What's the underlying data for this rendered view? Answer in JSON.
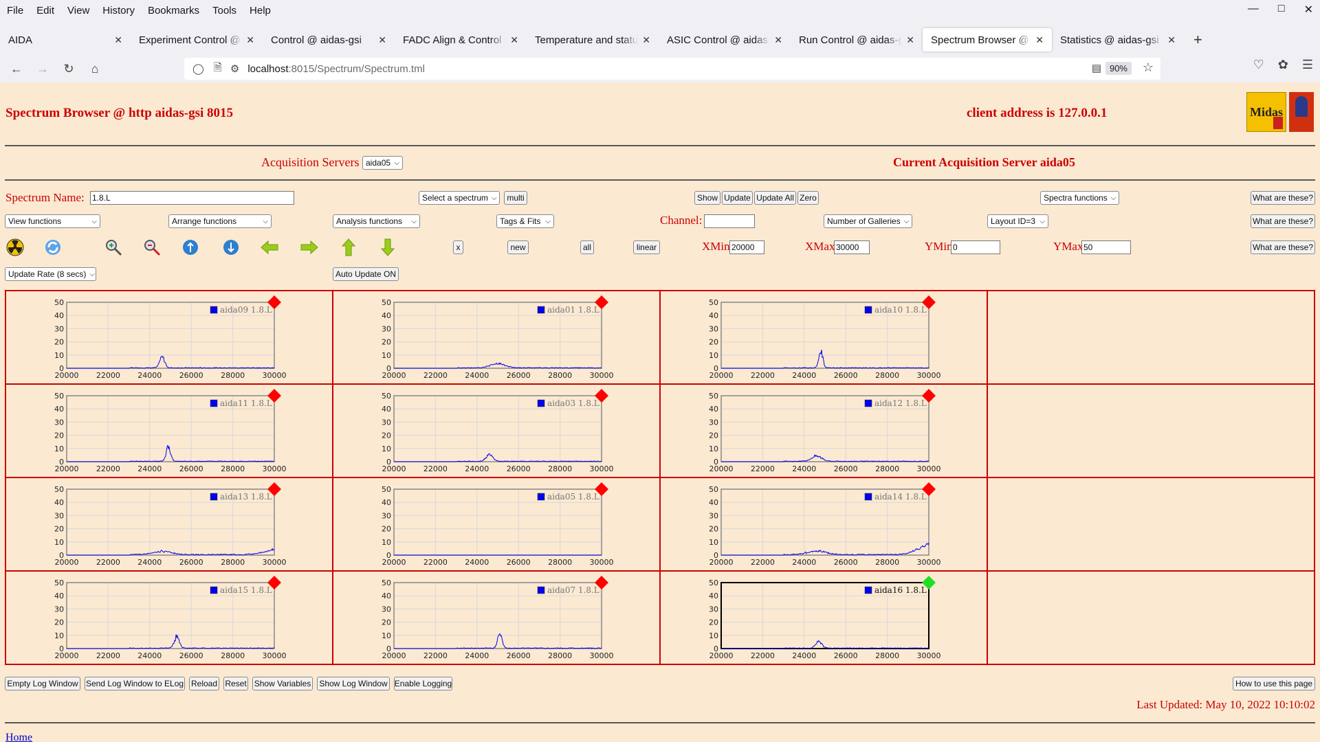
{
  "menubar": {
    "items": [
      "File",
      "Edit",
      "View",
      "History",
      "Bookmarks",
      "Tools",
      "Help"
    ]
  },
  "tabs": [
    {
      "label": "AIDA",
      "active": false
    },
    {
      "label": "Experiment Control @ aidas-gsi",
      "active": false
    },
    {
      "label": "Control @ aidas-gsi",
      "active": false
    },
    {
      "label": "FADC Align & Control @ aidas-gsi",
      "active": false
    },
    {
      "label": "Temperature and status @ aidas-gsi",
      "active": false
    },
    {
      "label": "ASIC Control @ aidas-gsi",
      "active": false
    },
    {
      "label": "Run Control @ aidas-gsi",
      "active": false
    },
    {
      "label": "Spectrum Browser @ aidas-gsi",
      "active": true
    },
    {
      "label": "Statistics @ aidas-gsi",
      "active": false
    }
  ],
  "urlbar": {
    "host": "localhost",
    "path": ":8015/Spectrum/Spectrum.tml",
    "zoom": "90%"
  },
  "page": {
    "title": "Spectrum Browser @ http aidas-gsi 8015",
    "client_address": "client address is 127.0.0.1",
    "logo_text": "Midas",
    "acq_servers_label": "Acquisition Servers",
    "acq_servers_value": "aida05",
    "current_server": "Current Acquisition Server aida05",
    "spectrum_name_label": "Spectrum Name:",
    "spectrum_name_value": "1.8.L",
    "select_spectrum": "Select a spectrum",
    "multi": "multi",
    "show": "Show",
    "update": "Update",
    "update_all": "Update All",
    "zero": "Zero",
    "spectra_functions": "Spectra functions",
    "what_are_these": "What are these?",
    "view_functions": "View functions",
    "arrange_functions": "Arrange functions",
    "analysis_functions": "Analysis functions",
    "tags_fits": "Tags & Fits",
    "channel_label": "Channel:",
    "channel_value": "",
    "number_of_galleries": "Number of Galleries",
    "layout_id": "Layout ID=3",
    "x_btn": "x",
    "new_btn": "new",
    "all_btn": "all",
    "linear_btn": "linear",
    "xmin_label": "XMin",
    "xmin_value": "20000",
    "xmax_label": "XMax",
    "xmax_value": "30000",
    "ymin_label": "YMin",
    "ymin_value": "0",
    "ymax_label": "YMax",
    "ymax_value": "50",
    "update_rate": "Update Rate (8 secs)",
    "auto_update": "Auto Update ON",
    "footer_buttons": [
      "Empty Log Window",
      "Send Log Window to ELog",
      "Reload",
      "Reset",
      "Show Variables",
      "Show Log Window",
      "Enable Logging"
    ],
    "how_to_use": "How to use this page",
    "last_updated": "Last Updated: May 10, 2022 10:10:02",
    "home": "Home"
  },
  "colors": {
    "page_bg": "#fbe9d2",
    "accent_red": "#cc0000",
    "series_blue": "#0000ee",
    "status_red": "#ff0000",
    "status_green": "#22dd22"
  },
  "chart_data": [
    {
      "type": "line",
      "legend": "aida09 1.8.L",
      "status": "red",
      "active": false,
      "xlim": [
        20000,
        30000
      ],
      "ylim": [
        0,
        50
      ],
      "xticks": [
        20000,
        22000,
        24000,
        26000,
        28000,
        30000
      ],
      "yticks": [
        0,
        10,
        20,
        30,
        40,
        50
      ],
      "peaks": [
        {
          "x": 24600,
          "height": 10,
          "width": 120
        }
      ],
      "baseline": 0.6,
      "tail": 0
    },
    {
      "type": "line",
      "legend": "aida01 1.8.L",
      "status": "red",
      "active": false,
      "xlim": [
        20000,
        30000
      ],
      "ylim": [
        0,
        50
      ],
      "xticks": [
        20000,
        22000,
        24000,
        26000,
        28000,
        30000
      ],
      "yticks": [
        0,
        10,
        20,
        30,
        40,
        50
      ],
      "peaks": [
        {
          "x": 25000,
          "height": 4,
          "width": 350
        }
      ],
      "baseline": 0.6,
      "tail": 0
    },
    {
      "type": "line",
      "legend": "aida10 1.8.L",
      "status": "red",
      "active": false,
      "xlim": [
        20000,
        30000
      ],
      "ylim": [
        0,
        50
      ],
      "xticks": [
        20000,
        22000,
        24000,
        26000,
        28000,
        30000
      ],
      "yticks": [
        0,
        10,
        20,
        30,
        40,
        50
      ],
      "peaks": [
        {
          "x": 24800,
          "height": 17,
          "width": 90
        }
      ],
      "baseline": 0.6,
      "tail": 0
    },
    {
      "type": "line",
      "legend": "aida11 1.8.L",
      "status": "red",
      "active": false,
      "xlim": [
        20000,
        30000
      ],
      "ylim": [
        0,
        50
      ],
      "xticks": [
        20000,
        22000,
        24000,
        26000,
        28000,
        30000
      ],
      "yticks": [
        0,
        10,
        20,
        30,
        40,
        50
      ],
      "peaks": [
        {
          "x": 24900,
          "height": 13,
          "width": 110
        }
      ],
      "baseline": 0.6,
      "tail": 0
    },
    {
      "type": "line",
      "legend": "aida03 1.8.L",
      "status": "red",
      "active": false,
      "xlim": [
        20000,
        30000
      ],
      "ylim": [
        0,
        50
      ],
      "xticks": [
        20000,
        22000,
        24000,
        26000,
        28000,
        30000
      ],
      "yticks": [
        0,
        10,
        20,
        30,
        40,
        50
      ],
      "peaks": [
        {
          "x": 24600,
          "height": 6,
          "width": 160
        }
      ],
      "baseline": 0.6,
      "tail": 0
    },
    {
      "type": "line",
      "legend": "aida12 1.8.L",
      "status": "red",
      "active": false,
      "xlim": [
        20000,
        30000
      ],
      "ylim": [
        0,
        50
      ],
      "xticks": [
        20000,
        22000,
        24000,
        26000,
        28000,
        30000
      ],
      "yticks": [
        0,
        10,
        20,
        30,
        40,
        50
      ],
      "peaks": [
        {
          "x": 24600,
          "height": 5,
          "width": 250
        }
      ],
      "baseline": 0.6,
      "tail": 0
    },
    {
      "type": "line",
      "legend": "aida13 1.8.L",
      "status": "red",
      "active": false,
      "xlim": [
        20000,
        30000
      ],
      "ylim": [
        0,
        50
      ],
      "xticks": [
        20000,
        22000,
        24000,
        26000,
        28000,
        30000
      ],
      "yticks": [
        0,
        10,
        20,
        30,
        40,
        50
      ],
      "peaks": [
        {
          "x": 24600,
          "height": 3,
          "width": 450
        }
      ],
      "baseline": 0.8,
      "tail": 5
    },
    {
      "type": "line",
      "legend": "aida05 1.8.L",
      "status": "red",
      "active": false,
      "xlim": [
        20000,
        30000
      ],
      "ylim": [
        0,
        50
      ],
      "xticks": [
        20000,
        22000,
        24000,
        26000,
        28000,
        30000
      ],
      "yticks": [
        0,
        10,
        20,
        30,
        40,
        50
      ],
      "peaks": [],
      "baseline": 0,
      "tail": 0
    },
    {
      "type": "line",
      "legend": "aida14 1.8.L",
      "status": "red",
      "active": false,
      "xlim": [
        20000,
        30000
      ],
      "ylim": [
        0,
        50
      ],
      "xticks": [
        20000,
        22000,
        24000,
        26000,
        28000,
        30000
      ],
      "yticks": [
        0,
        10,
        20,
        30,
        40,
        50
      ],
      "peaks": [
        {
          "x": 24600,
          "height": 3.5,
          "width": 450
        }
      ],
      "baseline": 0.8,
      "tail": 11
    },
    {
      "type": "line",
      "legend": "aida15 1.8.L",
      "status": "red",
      "active": false,
      "xlim": [
        20000,
        30000
      ],
      "ylim": [
        0,
        50
      ],
      "xticks": [
        20000,
        22000,
        24000,
        26000,
        28000,
        30000
      ],
      "yticks": [
        0,
        10,
        20,
        30,
        40,
        50
      ],
      "peaks": [
        {
          "x": 25300,
          "height": 11,
          "width": 120
        }
      ],
      "baseline": 0.6,
      "tail": 0
    },
    {
      "type": "line",
      "legend": "aida07 1.8.L",
      "status": "red",
      "active": false,
      "xlim": [
        20000,
        30000
      ],
      "ylim": [
        0,
        50
      ],
      "xticks": [
        20000,
        22000,
        24000,
        26000,
        28000,
        30000
      ],
      "yticks": [
        0,
        10,
        20,
        30,
        40,
        50
      ],
      "peaks": [
        {
          "x": 25100,
          "height": 13,
          "width": 110
        }
      ],
      "baseline": 0.6,
      "tail": 0
    },
    {
      "type": "line",
      "legend": "aida16 1.8.L",
      "status": "green",
      "active": true,
      "xlim": [
        20000,
        30000
      ],
      "ylim": [
        0,
        50
      ],
      "xticks": [
        20000,
        22000,
        24000,
        26000,
        28000,
        30000
      ],
      "yticks": [
        0,
        10,
        20,
        30,
        40,
        50
      ],
      "peaks": [
        {
          "x": 24700,
          "height": 6,
          "width": 150
        }
      ],
      "baseline": 0.6,
      "tail": 0
    }
  ]
}
